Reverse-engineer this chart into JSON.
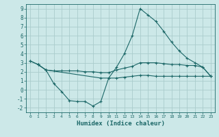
{
  "title": "",
  "xlabel": "Humidex (Indice chaleur)",
  "ylabel": "",
  "bg_color": "#cce8e8",
  "grid_color": "#aacccc",
  "line_color": "#1a6666",
  "xlim": [
    -0.5,
    23.5
  ],
  "ylim": [
    -2.5,
    9.5
  ],
  "xticks": [
    0,
    1,
    2,
    3,
    4,
    5,
    6,
    7,
    8,
    9,
    10,
    11,
    12,
    13,
    14,
    15,
    16,
    17,
    18,
    19,
    20,
    21,
    22,
    23
  ],
  "yticks": [
    -2,
    -1,
    0,
    1,
    2,
    3,
    4,
    5,
    6,
    7,
    8,
    9
  ],
  "series": [
    {
      "x": [
        0,
        1,
        2,
        9,
        10,
        11,
        12,
        13,
        14,
        15,
        16,
        17,
        18,
        19,
        20,
        21,
        22,
        23
      ],
      "y": [
        3.2,
        2.8,
        2.2,
        1.3,
        1.3,
        2.5,
        4.0,
        6.0,
        9.0,
        8.3,
        7.6,
        6.5,
        5.3,
        4.3,
        3.5,
        3.0,
        2.5,
        1.5
      ]
    },
    {
      "x": [
        0,
        1,
        2,
        3,
        4,
        5,
        6,
        7,
        8,
        9,
        10,
        11,
        12,
        13,
        14,
        15,
        16,
        17,
        18,
        19,
        20,
        21,
        22,
        23
      ],
      "y": [
        3.2,
        2.8,
        2.2,
        2.1,
        2.1,
        2.1,
        2.1,
        2.0,
        2.0,
        1.9,
        1.9,
        2.2,
        2.4,
        2.6,
        3.0,
        3.0,
        3.0,
        2.9,
        2.8,
        2.8,
        2.7,
        2.7,
        2.5,
        1.5
      ]
    },
    {
      "x": [
        1,
        2,
        3,
        4,
        5,
        6,
        7,
        8,
        9,
        10,
        11,
        12,
        13,
        14,
        15,
        16,
        17,
        18,
        19,
        20,
        21,
        22,
        23
      ],
      "y": [
        2.8,
        2.2,
        0.7,
        -0.2,
        -1.2,
        -1.3,
        -1.3,
        -1.8,
        -1.3,
        1.3,
        1.3,
        1.4,
        1.5,
        1.6,
        1.6,
        1.5,
        1.5,
        1.5,
        1.5,
        1.5,
        1.5,
        1.5,
        1.5
      ]
    }
  ]
}
